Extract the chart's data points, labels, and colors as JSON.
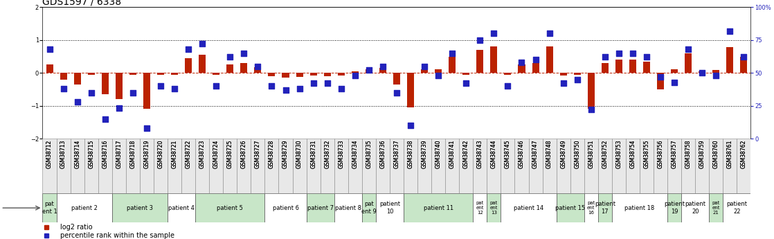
{
  "title": "GDS1597 / 6338",
  "samples": [
    "GSM38712",
    "GSM38713",
    "GSM38714",
    "GSM38715",
    "GSM38716",
    "GSM38717",
    "GSM38718",
    "GSM38719",
    "GSM38720",
    "GSM38721",
    "GSM38722",
    "GSM38723",
    "GSM38724",
    "GSM38725",
    "GSM38726",
    "GSM38727",
    "GSM38728",
    "GSM38729",
    "GSM38730",
    "GSM38731",
    "GSM38732",
    "GSM38733",
    "GSM38734",
    "GSM38735",
    "GSM38736",
    "GSM38737",
    "GSM38738",
    "GSM38739",
    "GSM38740",
    "GSM38741",
    "GSM38742",
    "GSM38743",
    "GSM38744",
    "GSM38745",
    "GSM38746",
    "GSM38747",
    "GSM38748",
    "GSM38749",
    "GSM38750",
    "GSM38751",
    "GSM38752",
    "GSM38753",
    "GSM38754",
    "GSM38755",
    "GSM38756",
    "GSM38757",
    "GSM38758",
    "GSM38759",
    "GSM38760",
    "GSM38761",
    "GSM38762"
  ],
  "log2_ratio": [
    0.25,
    -0.2,
    -0.35,
    -0.05,
    -0.65,
    -0.8,
    -0.05,
    -1.1,
    -0.05,
    -0.05,
    0.45,
    0.55,
    -0.05,
    0.25,
    0.3,
    0.18,
    -0.1,
    -0.15,
    -0.12,
    -0.08,
    -0.1,
    -0.08,
    0.05,
    0.1,
    0.15,
    -0.35,
    -1.05,
    0.1,
    0.1,
    0.5,
    -0.05,
    0.7,
    0.8,
    -0.05,
    0.25,
    0.3,
    0.8,
    -0.07,
    -0.06,
    -1.1,
    0.3,
    0.4,
    0.4,
    0.35,
    -0.5,
    0.1,
    0.6,
    0.05,
    0.08,
    0.78,
    0.5
  ],
  "percentile": [
    68,
    38,
    28,
    35,
    15,
    23,
    35,
    8,
    40,
    38,
    68,
    72,
    40,
    62,
    65,
    55,
    40,
    37,
    38,
    42,
    42,
    38,
    48,
    52,
    55,
    35,
    10,
    55,
    48,
    65,
    42,
    75,
    80,
    40,
    58,
    60,
    80,
    42,
    45,
    22,
    62,
    65,
    65,
    62,
    47,
    43,
    68,
    50,
    48,
    82,
    62
  ],
  "patients": [
    {
      "label": "pat\nent 1",
      "start": 0,
      "end": 1,
      "color": "#c8e6c8"
    },
    {
      "label": "patient 2",
      "start": 1,
      "end": 5,
      "color": "#ffffff"
    },
    {
      "label": "patient 3",
      "start": 5,
      "end": 9,
      "color": "#c8e6c8"
    },
    {
      "label": "patient 4",
      "start": 9,
      "end": 11,
      "color": "#ffffff"
    },
    {
      "label": "patient 5",
      "start": 11,
      "end": 16,
      "color": "#c8e6c8"
    },
    {
      "label": "patient 6",
      "start": 16,
      "end": 19,
      "color": "#ffffff"
    },
    {
      "label": "patient 7",
      "start": 19,
      "end": 21,
      "color": "#c8e6c8"
    },
    {
      "label": "patient 8",
      "start": 21,
      "end": 23,
      "color": "#ffffff"
    },
    {
      "label": "pat\nent 9",
      "start": 23,
      "end": 24,
      "color": "#c8e6c8"
    },
    {
      "label": "patient\n10",
      "start": 24,
      "end": 26,
      "color": "#ffffff"
    },
    {
      "label": "patient 11",
      "start": 26,
      "end": 31,
      "color": "#c8e6c8"
    },
    {
      "label": "pat\nent\n12",
      "start": 31,
      "end": 32,
      "color": "#ffffff"
    },
    {
      "label": "pat\nent\n13",
      "start": 32,
      "end": 33,
      "color": "#c8e6c8"
    },
    {
      "label": "patient 14",
      "start": 33,
      "end": 37,
      "color": "#ffffff"
    },
    {
      "label": "patient 15",
      "start": 37,
      "end": 39,
      "color": "#c8e6c8"
    },
    {
      "label": "pat\nent\n16",
      "start": 39,
      "end": 40,
      "color": "#ffffff"
    },
    {
      "label": "patient\n17",
      "start": 40,
      "end": 41,
      "color": "#c8e6c8"
    },
    {
      "label": "patient 18",
      "start": 41,
      "end": 45,
      "color": "#ffffff"
    },
    {
      "label": "patient\n19",
      "start": 45,
      "end": 46,
      "color": "#c8e6c8"
    },
    {
      "label": "patient\n20",
      "start": 46,
      "end": 48,
      "color": "#ffffff"
    },
    {
      "label": "pat\nent\n21",
      "start": 48,
      "end": 49,
      "color": "#c8e6c8"
    },
    {
      "label": "patient\n22",
      "start": 49,
      "end": 51,
      "color": "#ffffff"
    }
  ],
  "ylim": [
    -2,
    2
  ],
  "yticks_left": [
    -2,
    -1,
    0,
    1,
    2
  ],
  "yticks_right": [
    0,
    25,
    50,
    75,
    100
  ],
  "bar_color": "#bb2200",
  "dot_color": "#2222bb",
  "background_color": "#ffffff",
  "title_fontsize": 10,
  "tick_fontsize": 6,
  "sample_fontsize": 5.5,
  "patient_fontsize": 6,
  "legend_fontsize": 7
}
